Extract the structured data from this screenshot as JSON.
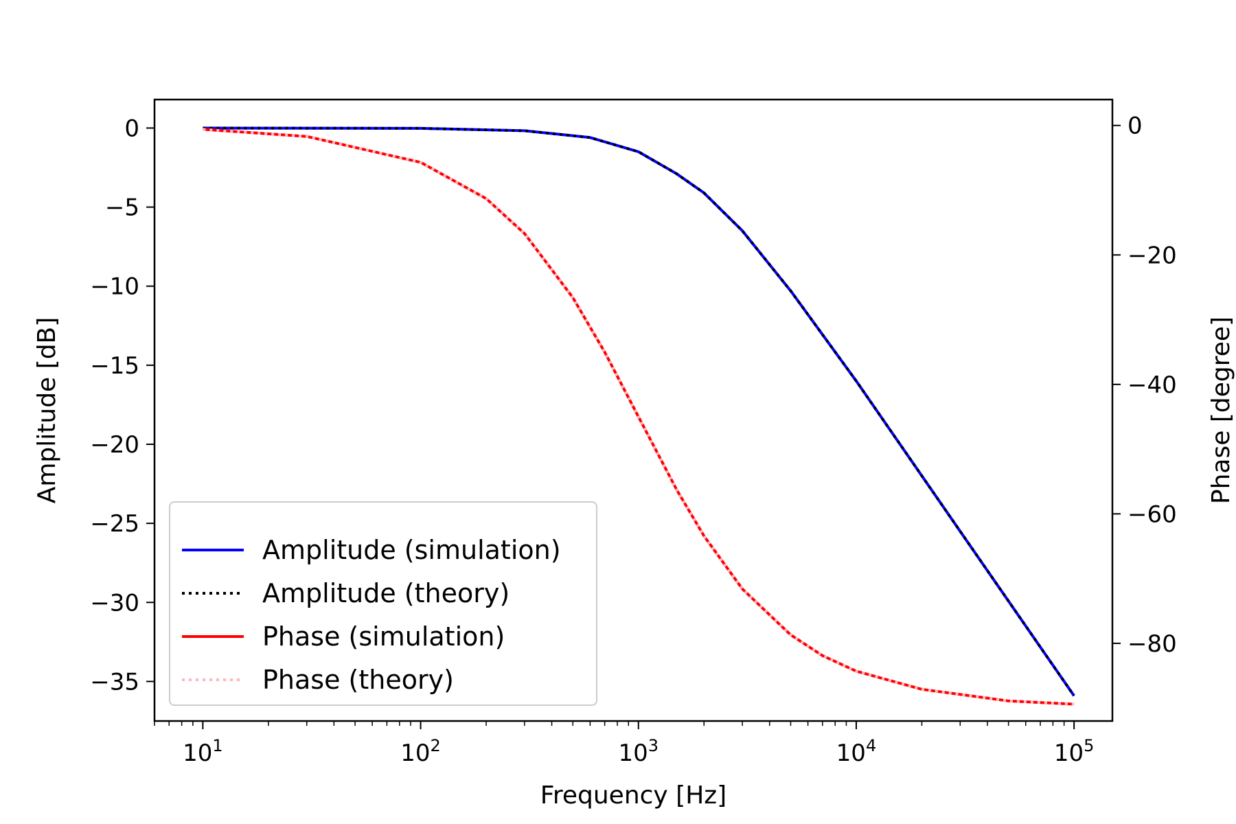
{
  "chart_data": {
    "type": "line",
    "xlabel": "Frequency [Hz]",
    "ylabel": "Amplitude [dB]",
    "ylabel_right": "Phase [degree]",
    "xscale": "log",
    "xlim": [
      6,
      150000
    ],
    "ylim": [
      -37.5,
      1.8
    ],
    "ylim_right": [
      -92,
      4
    ],
    "x_ticks": [
      10,
      100,
      1000,
      10000,
      100000
    ],
    "x_tick_labels": [
      {
        "base": "10",
        "exp": "1"
      },
      {
        "base": "10",
        "exp": "2"
      },
      {
        "base": "10",
        "exp": "3"
      },
      {
        "base": "10",
        "exp": "4"
      },
      {
        "base": "10",
        "exp": "5"
      }
    ],
    "y_ticks": [
      0,
      -5,
      -10,
      -15,
      -20,
      -25,
      -30,
      -35
    ],
    "y_tick_labels": [
      "0",
      "−5",
      "−10",
      "−15",
      "−20",
      "−25",
      "−30",
      "−35"
    ],
    "y_ticks_right": [
      0,
      -20,
      -40,
      -60,
      -80
    ],
    "y_tick_labels_right": [
      "0",
      "−20",
      "−40",
      "−60",
      "−80"
    ],
    "grid": false,
    "legend_position": "lower-left",
    "series": [
      {
        "name": "Amplitude (simulation)",
        "axis": "left",
        "color": "#0000ff",
        "style": "solid",
        "x": [
          10,
          100,
          300,
          600,
          1000,
          1500,
          2000,
          3000,
          5000,
          10000,
          30000,
          100000
        ],
        "y": [
          0,
          -0.02,
          -0.17,
          -0.6,
          -1.5,
          -2.9,
          -4.1,
          -6.5,
          -10.3,
          -16.0,
          -25.5,
          -35.9
        ]
      },
      {
        "name": "Amplitude (theory)",
        "axis": "left",
        "color": "#000000",
        "style": "dotted",
        "x": [
          10,
          100,
          300,
          600,
          1000,
          1500,
          2000,
          3000,
          5000,
          10000,
          30000,
          100000
        ],
        "y": [
          0,
          -0.02,
          -0.17,
          -0.6,
          -1.5,
          -2.9,
          -4.1,
          -6.5,
          -10.3,
          -16.0,
          -25.5,
          -35.9
        ]
      },
      {
        "name": "Phase (simulation)",
        "axis": "right",
        "color": "#ff0000",
        "style": "solid",
        "x": [
          10,
          30,
          100,
          200,
          300,
          500,
          700,
          1000,
          1500,
          2000,
          3000,
          5000,
          7000,
          10000,
          20000,
          50000,
          100000
        ],
        "y": [
          -0.6,
          -1.7,
          -5.7,
          -11.3,
          -16.7,
          -26.6,
          -35.0,
          -45.0,
          -56.3,
          -63.4,
          -71.6,
          -78.7,
          -81.9,
          -84.3,
          -87.1,
          -88.9,
          -89.4
        ]
      },
      {
        "name": "Phase (theory)",
        "axis": "right",
        "color": "#ffb6c1",
        "style": "dotted",
        "x": [
          10,
          30,
          100,
          200,
          300,
          500,
          700,
          1000,
          1500,
          2000,
          3000,
          5000,
          7000,
          10000,
          20000,
          50000,
          100000
        ],
        "y": [
          -0.6,
          -1.7,
          -5.7,
          -11.3,
          -16.7,
          -26.6,
          -35.0,
          -45.0,
          -56.3,
          -63.4,
          -71.6,
          -78.7,
          -81.9,
          -84.3,
          -87.1,
          -88.9,
          -89.4
        ]
      }
    ]
  }
}
